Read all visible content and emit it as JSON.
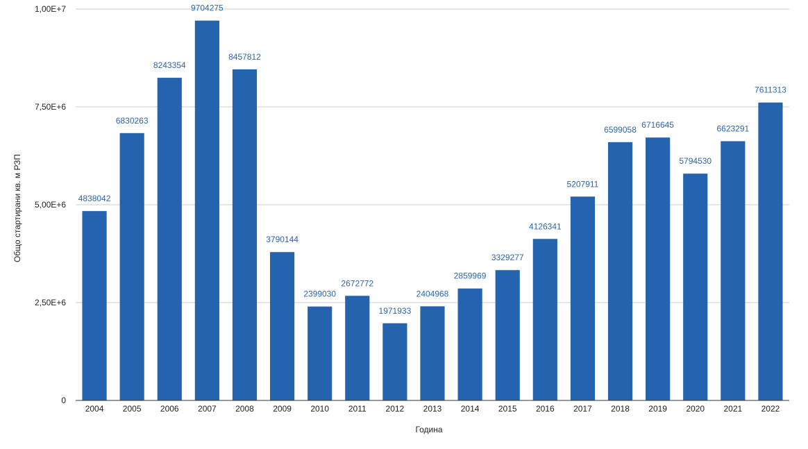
{
  "chart_data": {
    "type": "bar",
    "title": "",
    "xlabel": "Година",
    "ylabel": "Общо стартирани кв. м РЗП",
    "categories": [
      "2004",
      "2005",
      "2006",
      "2007",
      "2008",
      "2009",
      "2010",
      "2011",
      "2012",
      "2013",
      "2014",
      "2015",
      "2016",
      "2017",
      "2018",
      "2019",
      "2020",
      "2021",
      "2022"
    ],
    "values": [
      4838042,
      6830263,
      8243354,
      9704275,
      8457812,
      3790144,
      2399030,
      2672772,
      1971933,
      2404968,
      2859969,
      3329277,
      4126341,
      5207911,
      6599058,
      6716645,
      5794530,
      6623291,
      7611313
    ],
    "data_labels": [
      "4838042",
      "6830263",
      "8243354",
      "9704275",
      "8457812",
      "3790144",
      "2399030",
      "2672772",
      "1971933",
      "2404968",
      "2859969",
      "3329277",
      "4126341",
      "5207911",
      "6599058",
      "6716645",
      "5794530",
      "6623291",
      "7611313"
    ],
    "ylim": [
      0,
      10000000
    ],
    "yticks": [
      0,
      2500000,
      5000000,
      7500000,
      10000000
    ],
    "ytick_labels": [
      "0",
      "2,50E+6",
      "5,00E+6",
      "7,50E+6",
      "1,00E+7"
    ],
    "grid": true,
    "legend": "none",
    "colors": {
      "bar": "#2563ae",
      "label": "#2b65b0",
      "grid": "#cccccc",
      "axis": "#333333"
    }
  }
}
